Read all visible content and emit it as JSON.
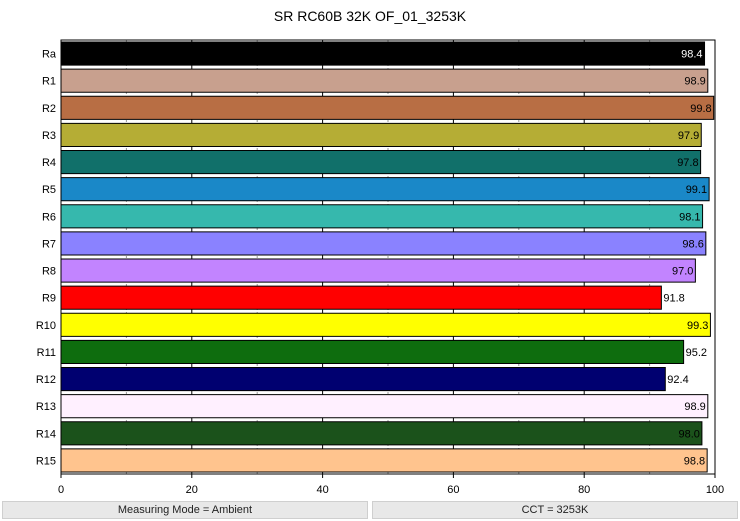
{
  "chart_data": {
    "type": "bar",
    "orientation": "horizontal",
    "title": "SR RC60B 32K OF_01_3253K",
    "categories": [
      "Ra",
      "R1",
      "R2",
      "R3",
      "R4",
      "R5",
      "R6",
      "R7",
      "R8",
      "R9",
      "R10",
      "R11",
      "R12",
      "R13",
      "R14",
      "R15"
    ],
    "values": [
      98.4,
      98.9,
      99.8,
      97.9,
      97.8,
      99.1,
      98.1,
      98.6,
      97.0,
      91.8,
      99.3,
      95.2,
      92.4,
      98.9,
      98.0,
      98.8
    ],
    "value_labels": [
      "98.4",
      "98.9",
      "99.8",
      "97.9",
      "97.8",
      "99.1",
      "98.1",
      "98.6",
      "97.0",
      "91.8",
      "99.3",
      "95.2",
      "92.4",
      "98.9",
      "98.0",
      "98.8"
    ],
    "colors": [
      "#000000",
      "#c8a08e",
      "#b86e44",
      "#b5ad35",
      "#11706a",
      "#1a88c8",
      "#36b8ad",
      "#8a82ff",
      "#c284ff",
      "#ff0000",
      "#ffff00",
      "#0e6d0e",
      "#000070",
      "#fff0ff",
      "#1b521b",
      "#ffc48e"
    ],
    "label_colors": [
      "#ffffff",
      "#000000",
      "#000000",
      "#000000",
      "#000000",
      "#000000",
      "#000000",
      "#000000",
      "#000000",
      "#000000",
      "#000000",
      "#000000",
      "#000000",
      "#000000",
      "#000000",
      "#000000"
    ],
    "xlim": [
      0,
      100
    ],
    "x_ticks": [
      0,
      20,
      40,
      60,
      80,
      100
    ],
    "grid": true,
    "grid_minor_dashed": [
      10,
      30,
      50,
      70,
      90
    ]
  },
  "footer": {
    "left": "Measuring Mode = Ambient",
    "right": "CCT = 3253K"
  }
}
